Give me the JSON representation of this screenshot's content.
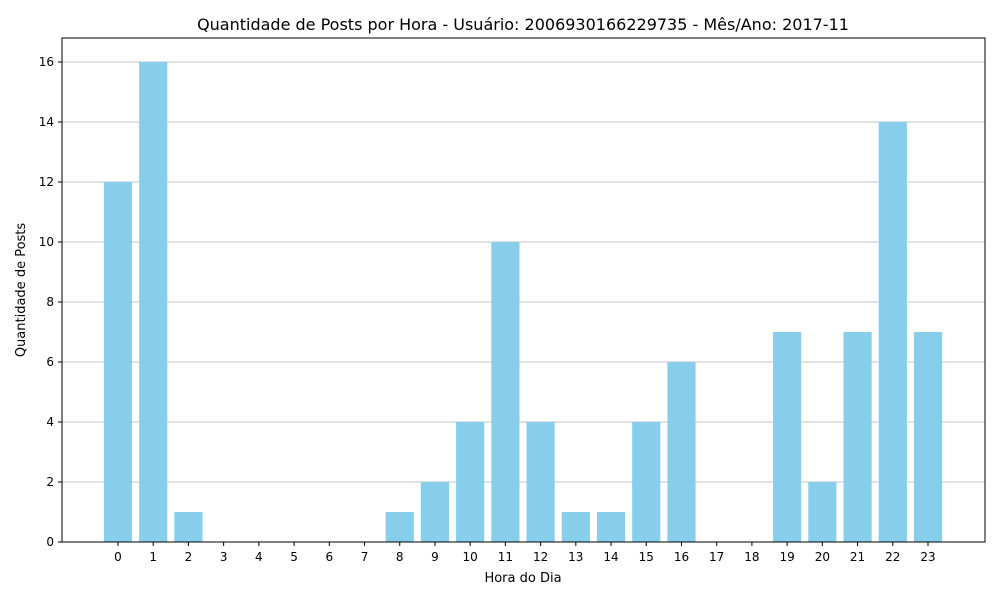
{
  "chart_data": {
    "type": "bar",
    "title": "Quantidade de Posts por Hora - Usuário: 2006930166229735 - Mês/Ano: 2017-11",
    "xlabel": "Hora do Dia",
    "ylabel": "Quantidade de Posts",
    "categories": [
      "0",
      "1",
      "2",
      "3",
      "4",
      "5",
      "6",
      "7",
      "8",
      "9",
      "10",
      "11",
      "12",
      "13",
      "14",
      "15",
      "16",
      "17",
      "18",
      "19",
      "20",
      "21",
      "22",
      "23"
    ],
    "values": [
      12,
      16,
      1,
      0,
      0,
      0,
      0,
      0,
      1,
      2,
      4,
      10,
      4,
      1,
      1,
      4,
      6,
      0,
      0,
      7,
      2,
      7,
      14,
      7
    ],
    "ylim": [
      0,
      16.8
    ],
    "yticks": [
      "0",
      "2",
      "4",
      "6",
      "8",
      "10",
      "12",
      "14",
      "16"
    ],
    "grid": "horizontal",
    "bar_color": "#87CEEB",
    "grid_color": "#b0b0b0"
  }
}
